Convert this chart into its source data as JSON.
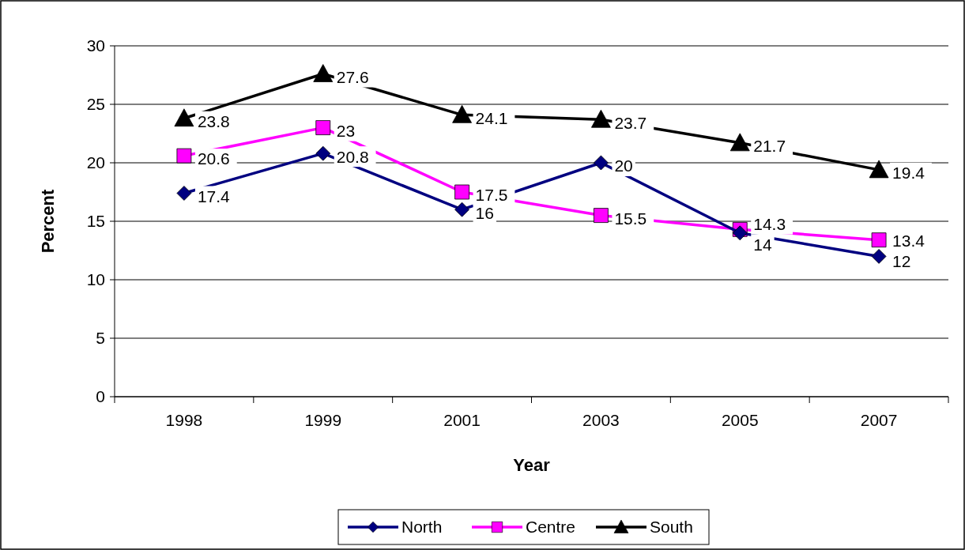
{
  "chart_data": {
    "type": "line",
    "xlabel": "Year",
    "ylabel": "Percent",
    "categories": [
      "1998",
      "1999",
      "2001",
      "2003",
      "2005",
      "2007"
    ],
    "series": [
      {
        "name": "North",
        "color": "#000080",
        "marker": "diamond",
        "values": [
          17.4,
          20.8,
          16,
          20,
          14,
          12
        ]
      },
      {
        "name": "Centre",
        "color": "#ff00ff",
        "marker": "square",
        "values": [
          20.6,
          23,
          17.5,
          15.5,
          14.3,
          13.4
        ]
      },
      {
        "name": "South",
        "color": "#000000",
        "marker": "triangle",
        "values": [
          23.8,
          27.6,
          24.1,
          23.7,
          21.7,
          19.4
        ]
      }
    ],
    "ylim": [
      0,
      30
    ],
    "yticks": [
      0,
      5,
      10,
      15,
      20,
      25,
      30
    ],
    "grid": "y",
    "legend": "bottom",
    "data_labels": true,
    "line_style": "solid"
  }
}
